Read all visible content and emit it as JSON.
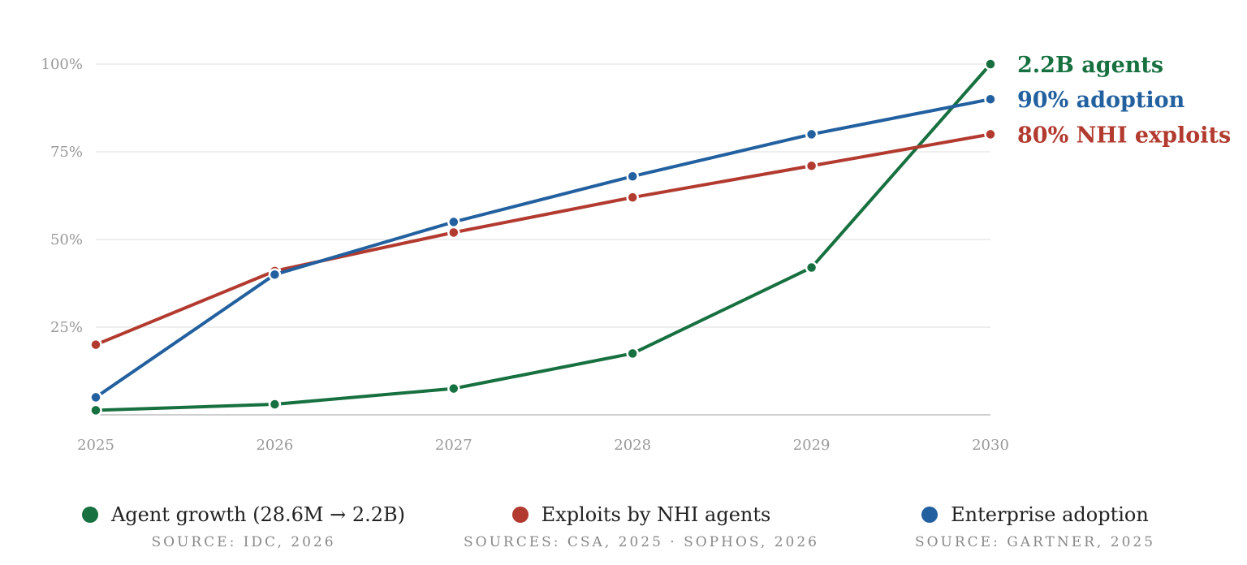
{
  "chart_data": {
    "type": "line",
    "title": "",
    "xlabel": "",
    "ylabel": "",
    "x": [
      2025,
      2026,
      2027,
      2028,
      2029,
      2030
    ],
    "x_tick_labels": [
      "2025",
      "2026",
      "2027",
      "2028",
      "2029",
      "2030"
    ],
    "ylim": [
      0,
      100
    ],
    "y_ticks": [
      25,
      50,
      75,
      100
    ],
    "y_tick_labels": [
      "25%",
      "50%",
      "75%",
      "100%"
    ],
    "grid": "horizontal",
    "legend_position": "bottom",
    "series": [
      {
        "name": "Agent growth (28.6M → 2.2B)",
        "color": "#17703f",
        "values": [
          1.3,
          3,
          7.5,
          17.5,
          42,
          100
        ],
        "end_label": "2.2B agents",
        "source": "SOURCE: IDC, 2026"
      },
      {
        "name": "Exploits by NHI agents",
        "color": "#b23a2f",
        "values": [
          20,
          41,
          52,
          62,
          71,
          80
        ],
        "end_label": "80% NHI exploits",
        "source": "SOURCES: CSA, 2025 · SOPHOS, 2026"
      },
      {
        "name": "Enterprise adoption",
        "color": "#22609f",
        "values": [
          5,
          40,
          55,
          68,
          80,
          90
        ],
        "end_label": "90% adoption",
        "source": "SOURCE: GARTNER, 2025"
      }
    ]
  }
}
